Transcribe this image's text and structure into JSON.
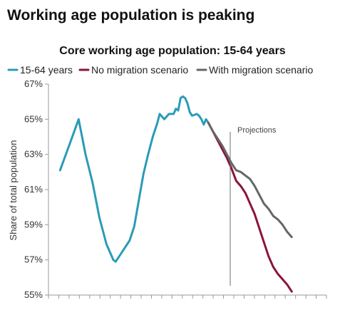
{
  "headline": "Working age population is peaking",
  "chart_data": {
    "type": "line",
    "title": "Core working age population: 15-64 years",
    "xlabel": "",
    "ylabel": "Share of total population",
    "ylim": [
      55,
      67
    ],
    "yticks": [
      55,
      57,
      59,
      61,
      63,
      65,
      67
    ],
    "ytick_labels": [
      "55%",
      "57%",
      "59%",
      "61%",
      "63%",
      "65%",
      "67%"
    ],
    "x_tick_count": 28,
    "grid": false,
    "legend_position": "top",
    "annotation": {
      "text": "Projections",
      "x": 2023
    },
    "xlim": [
      1950,
      2070
    ],
    "series": [
      {
        "name": "15-64 years",
        "color": "#2a9bb7",
        "points": [
          [
            1955,
            62.1
          ],
          [
            1960,
            63.9
          ],
          [
            1963,
            65.0
          ],
          [
            1966,
            63.0
          ],
          [
            1969,
            61.4
          ],
          [
            1972,
            59.4
          ],
          [
            1975,
            57.9
          ],
          [
            1978,
            57.0
          ],
          [
            1979,
            56.9
          ],
          [
            1981,
            57.3
          ],
          [
            1983,
            57.7
          ],
          [
            1985,
            58.1
          ],
          [
            1987,
            58.9
          ],
          [
            1989,
            60.4
          ],
          [
            1991,
            61.9
          ],
          [
            1993,
            63.0
          ],
          [
            1995,
            64.0
          ],
          [
            1997,
            64.8
          ],
          [
            1998,
            65.3
          ],
          [
            2000,
            65.0
          ],
          [
            2002,
            65.3
          ],
          [
            2004,
            65.3
          ],
          [
            2005,
            65.6
          ],
          [
            2006,
            65.5
          ],
          [
            2007,
            66.2
          ],
          [
            2008,
            66.3
          ],
          [
            2009,
            66.2
          ],
          [
            2010,
            65.9
          ],
          [
            2011,
            65.4
          ],
          [
            2012,
            65.2
          ],
          [
            2014,
            65.3
          ],
          [
            2015,
            65.2
          ],
          [
            2016,
            65.0
          ],
          [
            2017,
            64.7
          ],
          [
            2018,
            65.0
          ],
          [
            2019,
            64.8
          ]
        ]
      },
      {
        "name": "No migration scenario",
        "color": "#8b1538",
        "points": [
          [
            2019,
            64.8
          ],
          [
            2021,
            64.3
          ],
          [
            2023,
            63.8
          ],
          [
            2025,
            63.3
          ],
          [
            2027,
            62.8
          ],
          [
            2029,
            62.2
          ],
          [
            2031,
            61.5
          ],
          [
            2033,
            61.2
          ],
          [
            2035,
            60.8
          ],
          [
            2037,
            60.2
          ],
          [
            2039,
            59.6
          ],
          [
            2041,
            58.8
          ],
          [
            2043,
            58.0
          ],
          [
            2045,
            57.2
          ],
          [
            2047,
            56.6
          ],
          [
            2049,
            56.2
          ],
          [
            2051,
            55.9
          ],
          [
            2053,
            55.6
          ],
          [
            2055,
            55.2
          ]
        ]
      },
      {
        "name": "With migration scenario",
        "color": "#666666",
        "points": [
          [
            2019,
            64.8
          ],
          [
            2021,
            64.3
          ],
          [
            2023,
            63.9
          ],
          [
            2025,
            63.5
          ],
          [
            2027,
            63.0
          ],
          [
            2029,
            62.5
          ],
          [
            2031,
            62.1
          ],
          [
            2033,
            62.0
          ],
          [
            2035,
            61.8
          ],
          [
            2037,
            61.6
          ],
          [
            2039,
            61.2
          ],
          [
            2041,
            60.7
          ],
          [
            2043,
            60.2
          ],
          [
            2045,
            59.9
          ],
          [
            2047,
            59.5
          ],
          [
            2049,
            59.3
          ],
          [
            2051,
            59.0
          ],
          [
            2053,
            58.6
          ],
          [
            2055,
            58.3
          ]
        ]
      }
    ]
  }
}
